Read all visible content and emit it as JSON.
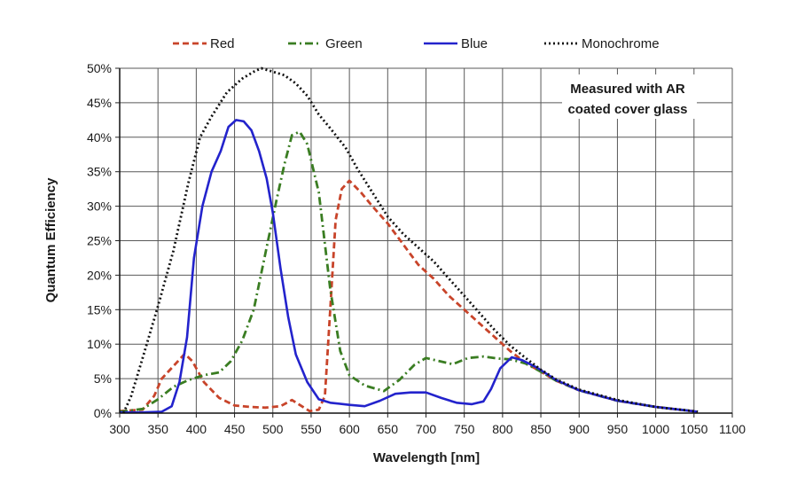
{
  "chart_data": {
    "type": "line",
    "xlabel": "Wavelength [nm]",
    "ylabel": "Quantum Efficiency",
    "xlim": [
      300,
      1100
    ],
    "ylim": [
      0,
      50
    ],
    "x_ticks": [
      "300",
      "350",
      "400",
      "450",
      "500",
      "550",
      "600",
      "650",
      "700",
      "750",
      "800",
      "850",
      "900",
      "950",
      "1000",
      "1050",
      "1100"
    ],
    "y_ticks": [
      "0%",
      "5%",
      "10%",
      "15%",
      "20%",
      "25%",
      "30%",
      "35%",
      "40%",
      "45%",
      "50%"
    ],
    "grid": true,
    "legend_position": "top",
    "annotation": [
      "Measured with AR",
      "coated cover glass"
    ],
    "series": [
      {
        "name": "Red",
        "color": "#c8442a",
        "style": "dashed",
        "points": [
          [
            300,
            0.3
          ],
          [
            330,
            0.5
          ],
          [
            345,
            2.5
          ],
          [
            355,
            5
          ],
          [
            370,
            6.8
          ],
          [
            385,
            8.6
          ],
          [
            395,
            7.5
          ],
          [
            410,
            4.5
          ],
          [
            430,
            2.2
          ],
          [
            450,
            1.1
          ],
          [
            470,
            0.9
          ],
          [
            490,
            0.8
          ],
          [
            510,
            1
          ],
          [
            525,
            1.9
          ],
          [
            535,
            1.2
          ],
          [
            548,
            0.3
          ],
          [
            560,
            0.5
          ],
          [
            568,
            2.5
          ],
          [
            575,
            15
          ],
          [
            582,
            28
          ],
          [
            590,
            32.5
          ],
          [
            600,
            33.7
          ],
          [
            615,
            32
          ],
          [
            630,
            30
          ],
          [
            650,
            27.5
          ],
          [
            670,
            24.5
          ],
          [
            690,
            21.5
          ],
          [
            710,
            19.5
          ],
          [
            730,
            17
          ],
          [
            750,
            15
          ],
          [
            770,
            13
          ],
          [
            790,
            11
          ],
          [
            810,
            9
          ],
          [
            830,
            7.3
          ],
          [
            850,
            6
          ],
          [
            870,
            4.7
          ],
          [
            900,
            3.3
          ],
          [
            950,
            1.8
          ],
          [
            1000,
            0.9
          ],
          [
            1055,
            0.2
          ]
        ]
      },
      {
        "name": "Green",
        "color": "#3a7d22",
        "style": "dash-dot",
        "points": [
          [
            300,
            0.2
          ],
          [
            330,
            0.6
          ],
          [
            350,
            2
          ],
          [
            370,
            3.8
          ],
          [
            390,
            4.8
          ],
          [
            410,
            5.5
          ],
          [
            430,
            5.9
          ],
          [
            445,
            7.5
          ],
          [
            460,
            10.5
          ],
          [
            475,
            15
          ],
          [
            490,
            23
          ],
          [
            505,
            31
          ],
          [
            515,
            36
          ],
          [
            525,
            40.3
          ],
          [
            535,
            40.8
          ],
          [
            545,
            39
          ],
          [
            560,
            32
          ],
          [
            575,
            18
          ],
          [
            588,
            9
          ],
          [
            600,
            5.5
          ],
          [
            620,
            4
          ],
          [
            645,
            3.2
          ],
          [
            665,
            4.8
          ],
          [
            685,
            7
          ],
          [
            700,
            8
          ],
          [
            715,
            7.6
          ],
          [
            735,
            7.1
          ],
          [
            755,
            8
          ],
          [
            775,
            8.2
          ],
          [
            795,
            7.9
          ],
          [
            810,
            7.8
          ],
          [
            830,
            7.2
          ],
          [
            850,
            6
          ],
          [
            870,
            4.7
          ],
          [
            900,
            3.3
          ],
          [
            950,
            1.8
          ],
          [
            1000,
            0.9
          ],
          [
            1055,
            0.2
          ]
        ]
      },
      {
        "name": "Blue",
        "color": "#2323cc",
        "style": "solid",
        "points": [
          [
            300,
            0.1
          ],
          [
            330,
            0.1
          ],
          [
            355,
            0.2
          ],
          [
            368,
            1
          ],
          [
            378,
            4.5
          ],
          [
            388,
            11
          ],
          [
            397,
            22.5
          ],
          [
            408,
            30
          ],
          [
            420,
            35
          ],
          [
            432,
            38
          ],
          [
            442,
            41.5
          ],
          [
            452,
            42.5
          ],
          [
            462,
            42.3
          ],
          [
            472,
            41
          ],
          [
            482,
            38
          ],
          [
            492,
            34
          ],
          [
            500,
            29
          ],
          [
            510,
            21
          ],
          [
            520,
            14
          ],
          [
            530,
            8.5
          ],
          [
            545,
            4.5
          ],
          [
            560,
            2
          ],
          [
            575,
            1.5
          ],
          [
            600,
            1.2
          ],
          [
            620,
            1
          ],
          [
            640,
            1.8
          ],
          [
            660,
            2.8
          ],
          [
            680,
            3
          ],
          [
            700,
            3
          ],
          [
            720,
            2.2
          ],
          [
            740,
            1.5
          ],
          [
            760,
            1.3
          ],
          [
            775,
            1.7
          ],
          [
            785,
            3.5
          ],
          [
            797,
            6.5
          ],
          [
            812,
            8.1
          ],
          [
            825,
            7.7
          ],
          [
            845,
            6.6
          ],
          [
            870,
            4.8
          ],
          [
            900,
            3.3
          ],
          [
            950,
            1.8
          ],
          [
            1000,
            0.9
          ],
          [
            1055,
            0.2
          ]
        ]
      },
      {
        "name": "Monochrome",
        "color": "#111111",
        "style": "dotted",
        "points": [
          [
            305,
            0
          ],
          [
            315,
            2.5
          ],
          [
            330,
            8
          ],
          [
            350,
            15.5
          ],
          [
            370,
            23.5
          ],
          [
            390,
            33.5
          ],
          [
            405,
            40
          ],
          [
            420,
            43
          ],
          [
            440,
            46.5
          ],
          [
            460,
            48.5
          ],
          [
            475,
            49.5
          ],
          [
            485,
            50
          ],
          [
            500,
            49.5
          ],
          [
            515,
            49
          ],
          [
            530,
            47.8
          ],
          [
            545,
            46
          ],
          [
            560,
            43.3
          ],
          [
            575,
            41.3
          ],
          [
            595,
            38.5
          ],
          [
            610,
            35.5
          ],
          [
            630,
            32
          ],
          [
            650,
            28.5
          ],
          [
            670,
            26
          ],
          [
            690,
            24
          ],
          [
            710,
            22
          ],
          [
            730,
            19.5
          ],
          [
            750,
            17
          ],
          [
            770,
            14.5
          ],
          [
            790,
            12
          ],
          [
            810,
            9.8
          ],
          [
            830,
            8
          ],
          [
            850,
            6.3
          ],
          [
            870,
            4.9
          ],
          [
            900,
            3.4
          ],
          [
            950,
            1.9
          ],
          [
            1000,
            0.9
          ],
          [
            1055,
            0.2
          ]
        ]
      }
    ]
  }
}
